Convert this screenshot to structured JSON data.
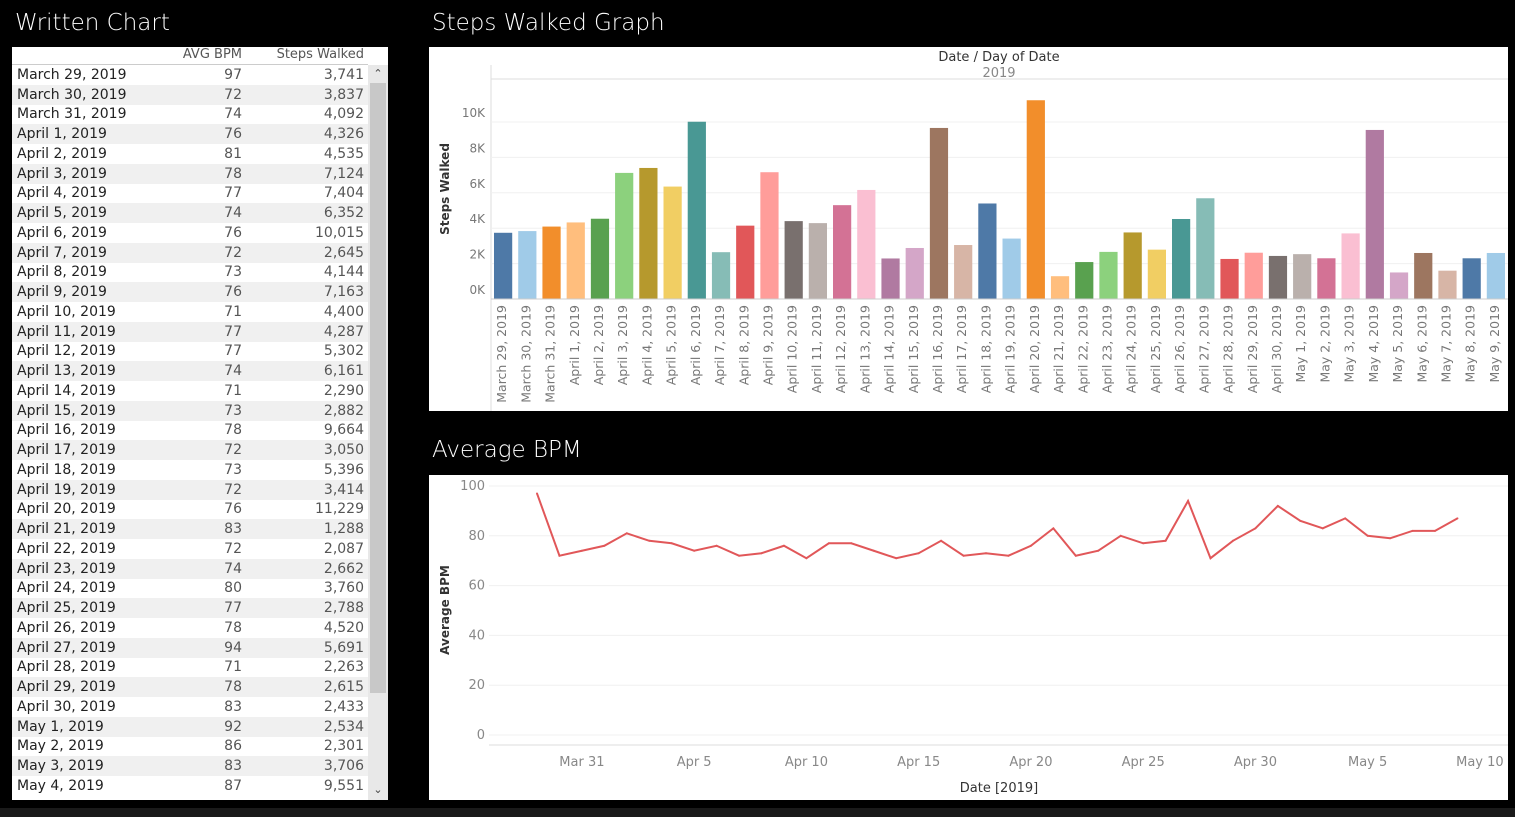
{
  "titles": {
    "written": "Written Chart",
    "steps": "Steps Walked Graph",
    "bpm": "Average BPM"
  },
  "table": {
    "headers": [
      "",
      "AVG BPM",
      "Steps Walked"
    ],
    "rows": [
      [
        "March 29, 2019",
        "97",
        "3,741"
      ],
      [
        "March 30, 2019",
        "72",
        "3,837"
      ],
      [
        "March 31, 2019",
        "74",
        "4,092"
      ],
      [
        "April 1, 2019",
        "76",
        "4,326"
      ],
      [
        "April 2, 2019",
        "81",
        "4,535"
      ],
      [
        "April 3, 2019",
        "78",
        "7,124"
      ],
      [
        "April 4, 2019",
        "77",
        "7,404"
      ],
      [
        "April 5, 2019",
        "74",
        "6,352"
      ],
      [
        "April 6, 2019",
        "76",
        "10,015"
      ],
      [
        "April 7, 2019",
        "72",
        "2,645"
      ],
      [
        "April 8, 2019",
        "73",
        "4,144"
      ],
      [
        "April 9, 2019",
        "76",
        "7,163"
      ],
      [
        "April 10, 2019",
        "71",
        "4,400"
      ],
      [
        "April 11, 2019",
        "77",
        "4,287"
      ],
      [
        "April 12, 2019",
        "77",
        "5,302"
      ],
      [
        "April 13, 2019",
        "74",
        "6,161"
      ],
      [
        "April 14, 2019",
        "71",
        "2,290"
      ],
      [
        "April 15, 2019",
        "73",
        "2,882"
      ],
      [
        "April 16, 2019",
        "78",
        "9,664"
      ],
      [
        "April 17, 2019",
        "72",
        "3,050"
      ],
      [
        "April 18, 2019",
        "73",
        "5,396"
      ],
      [
        "April 19, 2019",
        "72",
        "3,414"
      ],
      [
        "April 20, 2019",
        "76",
        "11,229"
      ],
      [
        "April 21, 2019",
        "83",
        "1,288"
      ],
      [
        "April 22, 2019",
        "72",
        "2,087"
      ],
      [
        "April 23, 2019",
        "74",
        "2,662"
      ],
      [
        "April 24, 2019",
        "80",
        "3,760"
      ],
      [
        "April 25, 2019",
        "77",
        "2,788"
      ],
      [
        "April 26, 2019",
        "78",
        "4,520"
      ],
      [
        "April 27, 2019",
        "94",
        "5,691"
      ],
      [
        "April 28, 2019",
        "71",
        "2,263"
      ],
      [
        "April 29, 2019",
        "78",
        "2,615"
      ],
      [
        "April 30, 2019",
        "83",
        "2,433"
      ],
      [
        "May 1, 2019",
        "92",
        "2,534"
      ],
      [
        "May 2, 2019",
        "86",
        "2,301"
      ],
      [
        "May 3, 2019",
        "83",
        "3,706"
      ],
      [
        "May 4, 2019",
        "87",
        "9,551"
      ]
    ]
  },
  "chart_data": [
    {
      "type": "bar",
      "title": "Steps Walked Graph",
      "header": "Date / Day of Date",
      "subheader": "2019",
      "ylabel": "Steps Walked",
      "yticks": [
        "0K",
        "2K",
        "4K",
        "6K",
        "8K",
        "10K"
      ],
      "ylim": [
        0,
        12000
      ],
      "categories": [
        "March 29, 2019",
        "March 30, 2019",
        "March 31, 2019",
        "April 1, 2019",
        "April 2, 2019",
        "April 3, 2019",
        "April 4, 2019",
        "April 5, 2019",
        "April 6, 2019",
        "April 7, 2019",
        "April 8, 2019",
        "April 9, 2019",
        "April 10, 2019",
        "April 11, 2019",
        "April 12, 2019",
        "April 13, 2019",
        "April 14, 2019",
        "April 15, 2019",
        "April 16, 2019",
        "April 17, 2019",
        "April 18, 2019",
        "April 19, 2019",
        "April 20, 2019",
        "April 21, 2019",
        "April 22, 2019",
        "April 23, 2019",
        "April 24, 2019",
        "April 25, 2019",
        "April 26, 2019",
        "April 27, 2019",
        "April 28, 2019",
        "April 29, 2019",
        "April 30, 2019",
        "May 1, 2019",
        "May 2, 2019",
        "May 3, 2019",
        "May 4, 2019",
        "May 5, 2019",
        "May 6, 2019",
        "May 7, 2019",
        "May 8, 2019",
        "May 9, 2019"
      ],
      "values": [
        3741,
        3837,
        4092,
        4326,
        4535,
        7124,
        7404,
        6352,
        10015,
        2645,
        4144,
        7163,
        4400,
        4287,
        5302,
        6161,
        2290,
        2882,
        9664,
        3050,
        5396,
        3414,
        11229,
        1288,
        2087,
        2662,
        3760,
        2788,
        4520,
        5691,
        2263,
        2615,
        2433,
        2534,
        2301,
        3706,
        9551,
        1500,
        2600,
        1600,
        2300,
        2600
      ],
      "colors": [
        "#4e79a7",
        "#a0cbe8",
        "#f28e2b",
        "#ffbe7d",
        "#59a14f",
        "#8cd17d",
        "#b6992d",
        "#f1ce63",
        "#499894",
        "#86bcb6",
        "#e15759",
        "#ff9d9a",
        "#79706e",
        "#bab0ac",
        "#d37295",
        "#fabfd2",
        "#b07aa1",
        "#d4a6c8",
        "#9d7660",
        "#d7b5a6"
      ]
    },
    {
      "type": "line",
      "title": "Average BPM",
      "xlabel": "Date [2019]",
      "ylabel": "Average BPM",
      "ylim": [
        0,
        100
      ],
      "yticks": [
        "0",
        "20",
        "40",
        "60",
        "80",
        "100"
      ],
      "xticks": [
        "Mar 31",
        "Apr 5",
        "Apr 10",
        "Apr 15",
        "Apr 20",
        "Apr 25",
        "Apr 30",
        "May 5",
        "May 10"
      ],
      "values": [
        97,
        72,
        74,
        76,
        81,
        78,
        77,
        74,
        76,
        72,
        73,
        76,
        71,
        77,
        77,
        74,
        71,
        73,
        78,
        72,
        73,
        72,
        76,
        83,
        72,
        74,
        80,
        77,
        78,
        94,
        71,
        78,
        83,
        92,
        86,
        83,
        87,
        80,
        79,
        82,
        82,
        87
      ],
      "color": "#e15759"
    }
  ]
}
